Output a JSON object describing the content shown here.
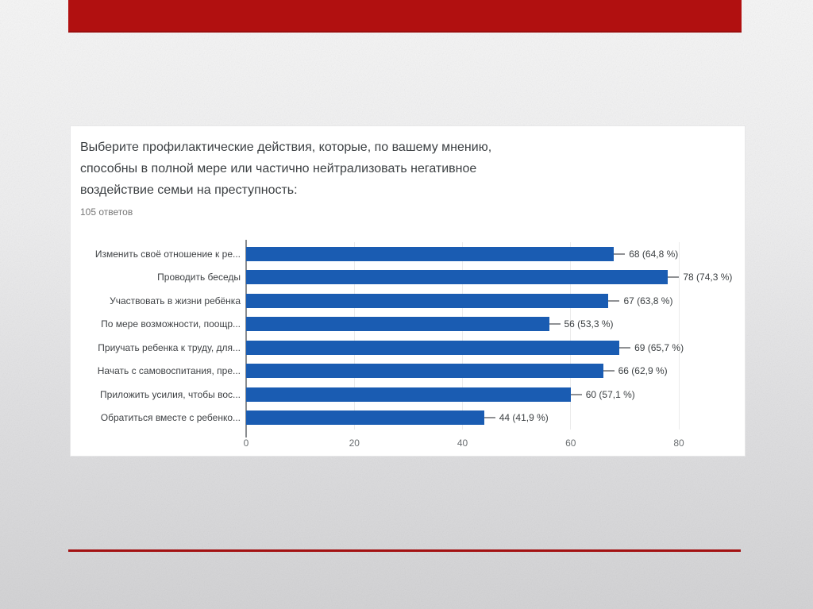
{
  "slide": {
    "top_accent_color": "#b11010",
    "bottom_line_color": "#a31112",
    "background_top": "#f6f6f6",
    "background_bottom": "#d2d2d4"
  },
  "chart_data": {
    "type": "bar",
    "orientation": "horizontal",
    "title": "Выберите профилактические действия, которые, по вашему мнению, способны в полной мере или частично нейтрализовать негативное воздействие семьи на преступность:",
    "title_lines": [
      "Выберите профилактические действия, которые, по вашему мнению,",
      "способны в полной мере или частично нейтрализовать негативное",
      "воздействие семьи на преступность:"
    ],
    "subtitle": "105 ответов",
    "categories": [
      "Изменить своё отношение к ре...",
      "Проводить беседы",
      "Участвовать в жизни ребёнка",
      "По мере возможности, поощр...",
      "Приучать ребенка к труду, для...",
      "Начать с самовоспитания, пре...",
      "Приложить усилия, чтобы вос...",
      "Обратиться вместе с ребенко..."
    ],
    "values": [
      68,
      78,
      67,
      56,
      69,
      66,
      60,
      44
    ],
    "value_labels": [
      "68 (64,8 %)",
      "78 (74,3 %)",
      "67 (63,8 %)",
      "56 (53,3 %)",
      "69 (65,7 %)",
      "66 (62,9 %)",
      "60 (57,1 %)",
      "44 (41,9 %)"
    ],
    "x_ticks": [
      0,
      20,
      40,
      60,
      80
    ],
    "xlim": [
      0,
      80
    ],
    "xlabel": "",
    "ylabel": "",
    "bar_color": "#1a5cb2",
    "grid": true,
    "legend": false
  }
}
